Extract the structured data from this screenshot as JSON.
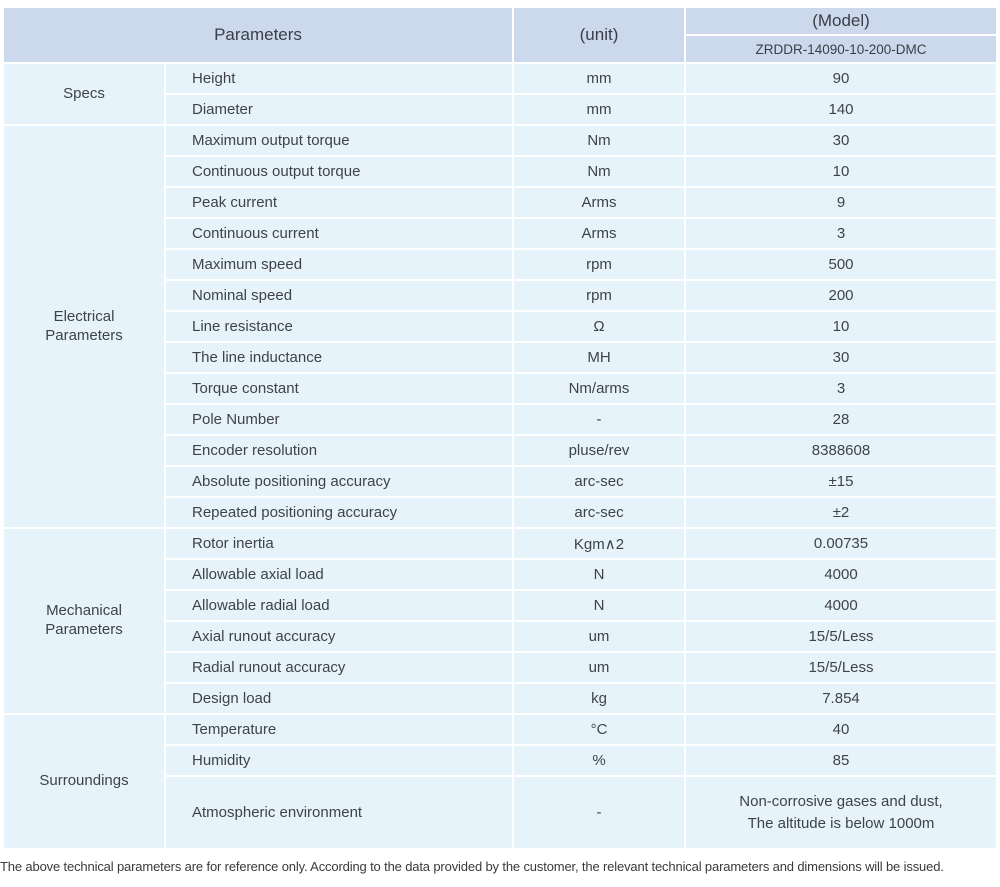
{
  "header": {
    "parameters_label": "Parameters",
    "unit_label": "(unit)",
    "model_label": "(Model)",
    "model_value": "ZRDDR-14090-10-200-DMC"
  },
  "groups": [
    {
      "category": "Specs",
      "rows": [
        {
          "param": "Height",
          "unit": "mm",
          "value": "90"
        },
        {
          "param": "Diameter",
          "unit": "mm",
          "value": "140"
        }
      ]
    },
    {
      "category": "Electrical\nParameters",
      "rows": [
        {
          "param": "Maximum output torque",
          "unit": "Nm",
          "value": "30"
        },
        {
          "param": "Continuous output torque",
          "unit": "Nm",
          "value": "10"
        },
        {
          "param": "Peak current",
          "unit": "Arms",
          "value": "9"
        },
        {
          "param": "Continuous current",
          "unit": "Arms",
          "value": "3"
        },
        {
          "param": "Maximum speed",
          "unit": "rpm",
          "value": "500"
        },
        {
          "param": "Nominal speed",
          "unit": "rpm",
          "value": "200"
        },
        {
          "param": "Line resistance",
          "unit": "Ω",
          "value": "10"
        },
        {
          "param": "The line inductance",
          "unit": "MH",
          "value": "30"
        },
        {
          "param": "Torque constant",
          "unit": "Nm/arms",
          "value": "3"
        },
        {
          "param": "Pole Number",
          "unit": "-",
          "value": "28"
        },
        {
          "param": "Encoder resolution",
          "unit": "pluse/rev",
          "value": "8388608"
        },
        {
          "param": "Absolute positioning accuracy",
          "unit": "arc-sec",
          "value": "±15"
        },
        {
          "param": "Repeated positioning accuracy",
          "unit": "arc-sec",
          "value": "±2"
        }
      ]
    },
    {
      "category": "Mechanical\nParameters",
      "rows": [
        {
          "param": "Rotor inertia",
          "unit": "Kgm∧2",
          "value": "0.00735"
        },
        {
          "param": "Allowable axial load",
          "unit": "N",
          "value": "4000"
        },
        {
          "param": "Allowable radial load",
          "unit": "N",
          "value": "4000"
        },
        {
          "param": "Axial runout accuracy",
          "unit": "um",
          "value": "15/5/Less"
        },
        {
          "param": "Radial runout accuracy",
          "unit": "um",
          "value": "15/5/Less"
        },
        {
          "param": "Design load",
          "unit": "kg",
          "value": "7.854"
        }
      ]
    },
    {
      "category": "Surroundings",
      "rows": [
        {
          "param": "Temperature",
          "unit": "°C",
          "value": "40"
        },
        {
          "param": "Humidity",
          "unit": "%",
          "value": "85"
        },
        {
          "param": "Atmospheric environment",
          "unit": "-",
          "value": "Non-corrosive gases and dust,\nThe altitude is below 1000m"
        }
      ]
    }
  ],
  "footer": {
    "note": "The above technical parameters are for reference only. According to the data provided by the customer, the relevant technical parameters and dimensions will be issued."
  },
  "colors": {
    "header_bg": "#ccd8ec",
    "body_bg": "#e6f3fb",
    "separator": "#ffffff",
    "text": "#3f4347"
  }
}
